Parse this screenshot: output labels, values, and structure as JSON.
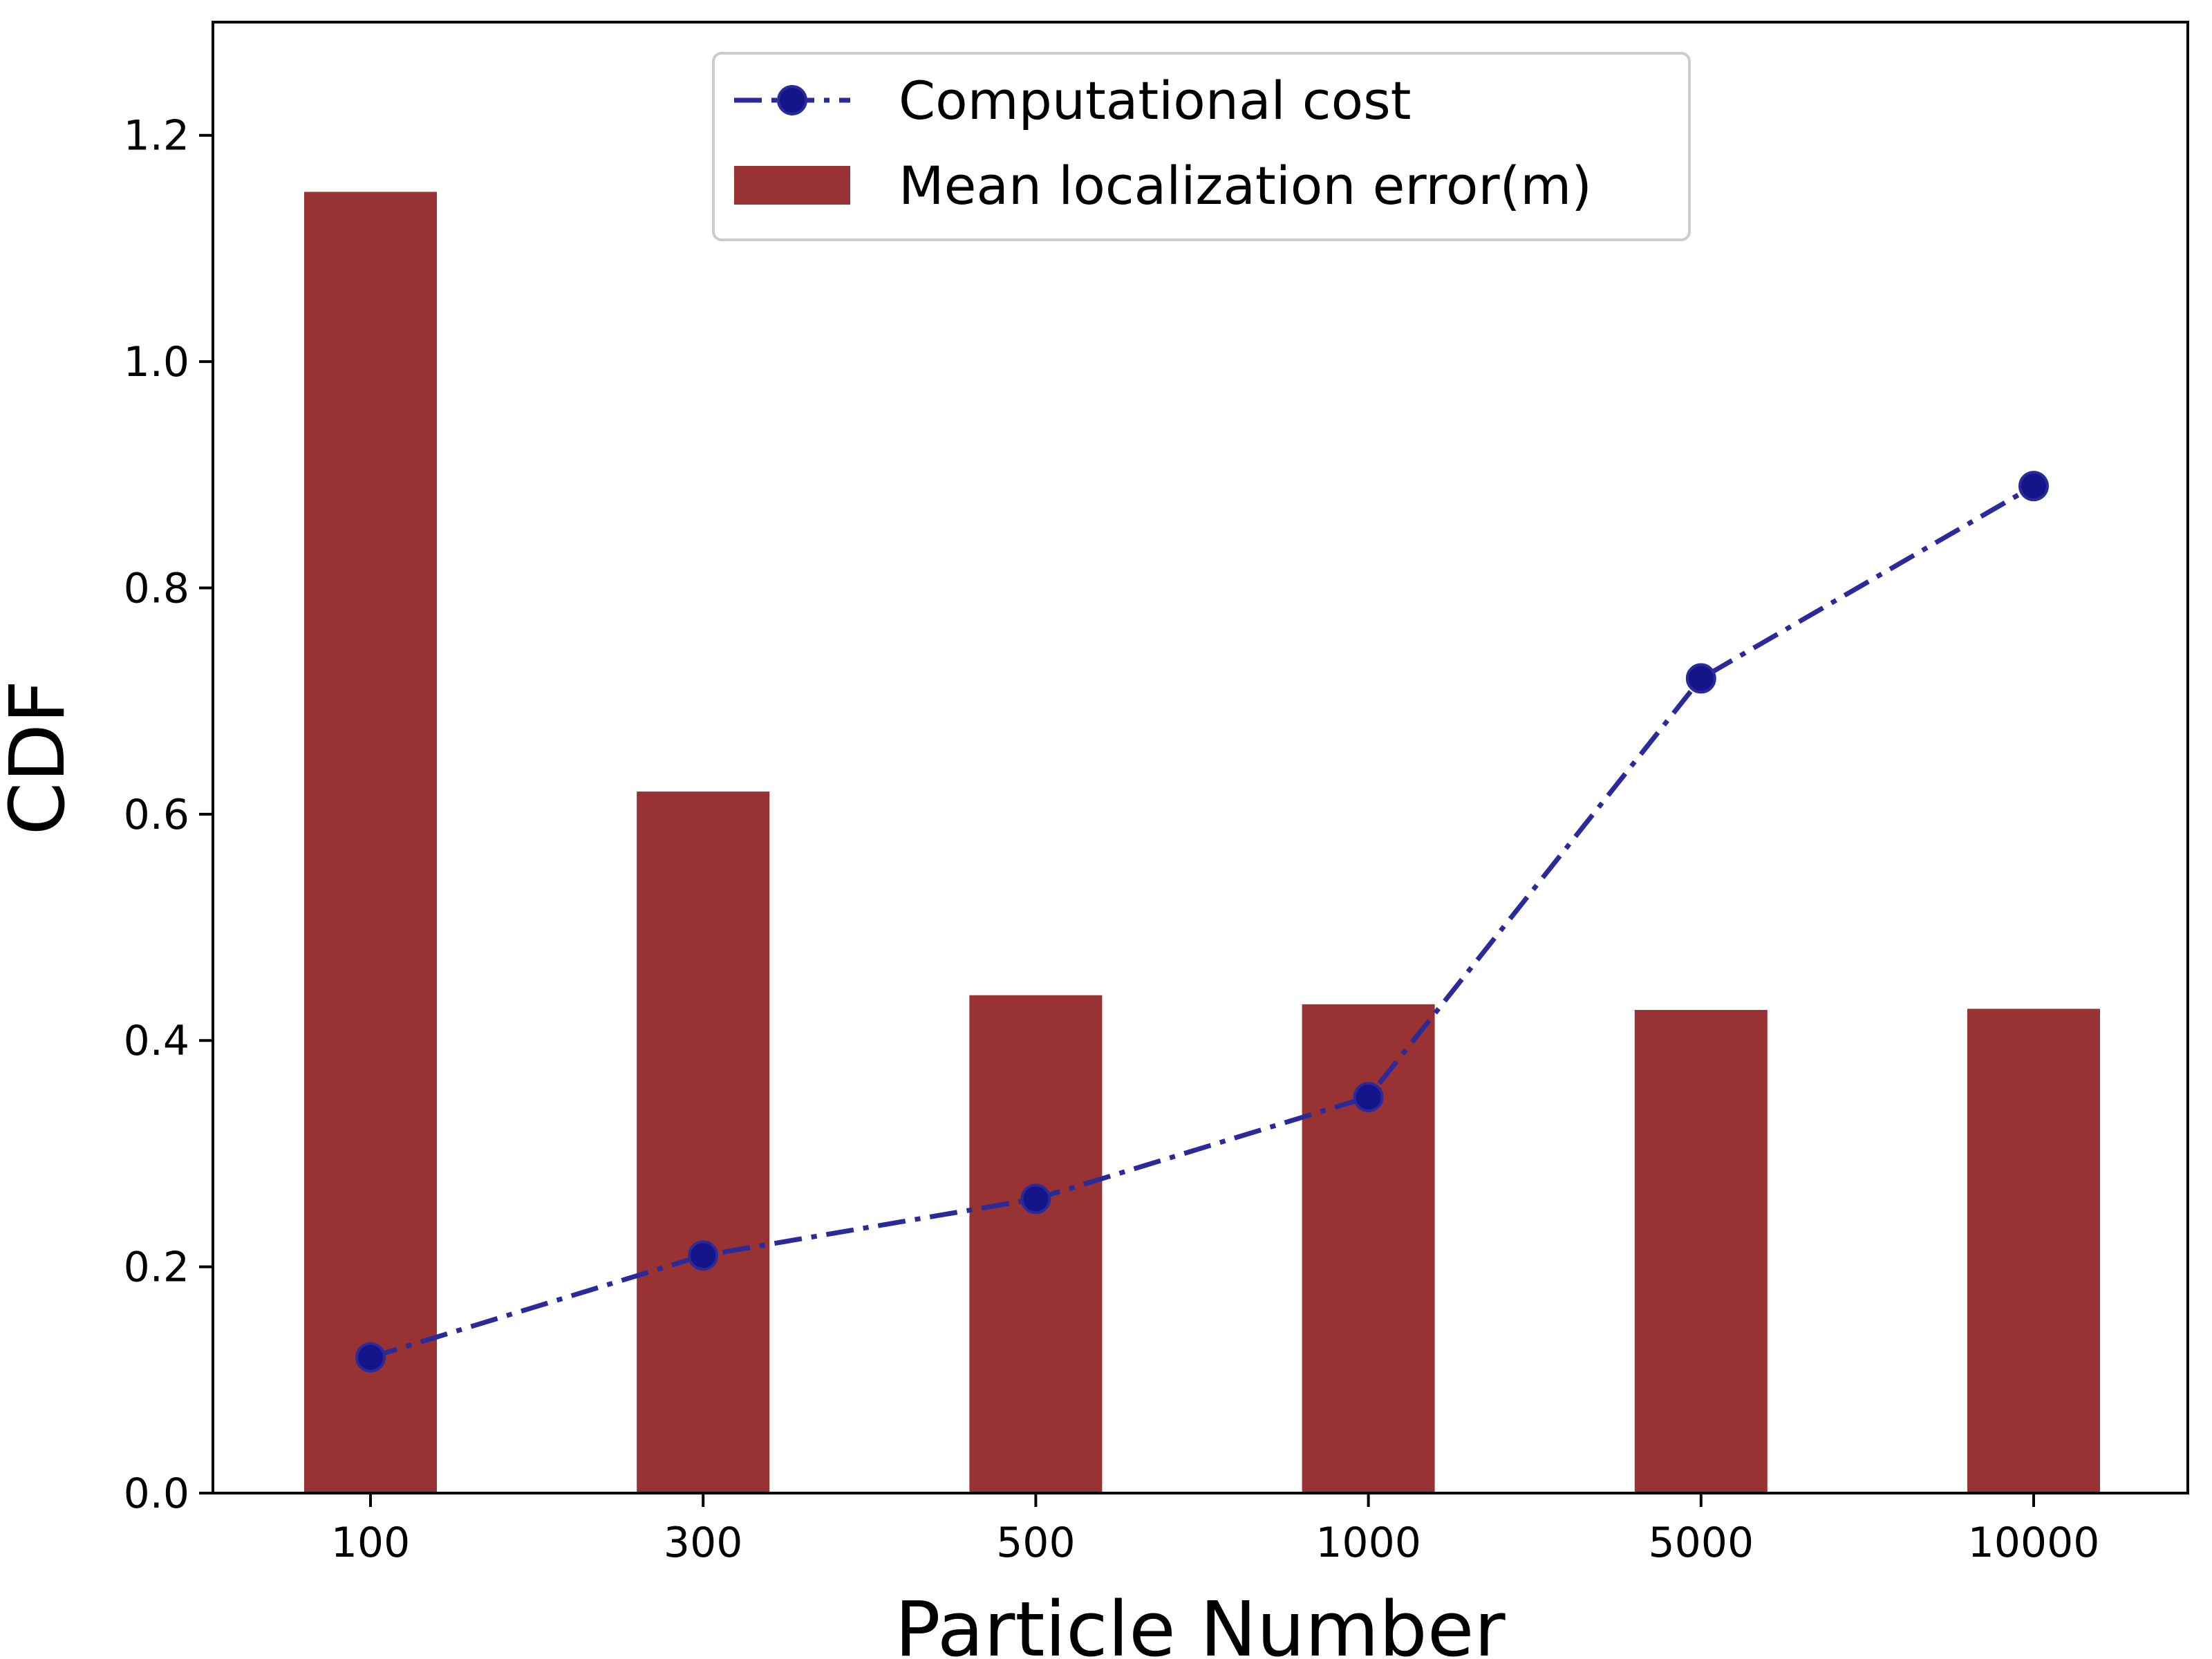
{
  "chart_data": {
    "type": "bar",
    "categories": [
      "100",
      "300",
      "500",
      "1000",
      "5000",
      "10000"
    ],
    "xlabel": "Particle Number",
    "ylabel": "CDF",
    "ylim": [
      0,
      1.3
    ],
    "yticks": [
      "0.0",
      "0.2",
      "0.4",
      "0.6",
      "0.8",
      "1.0",
      "1.2"
    ],
    "grid": false,
    "legend_position": "top-center",
    "series": [
      {
        "name": "Computational cost",
        "type": "line",
        "style": "dash-dot with circle markers",
        "color": "#2a2a9a",
        "marker_color": "#15158a",
        "values": [
          0.12,
          0.21,
          0.26,
          0.35,
          0.72,
          0.89
        ]
      },
      {
        "name": "Mean localization error(m)",
        "type": "bar",
        "color": "#993333",
        "values": [
          1.15,
          0.62,
          0.44,
          0.432,
          0.427,
          0.428
        ]
      }
    ]
  }
}
